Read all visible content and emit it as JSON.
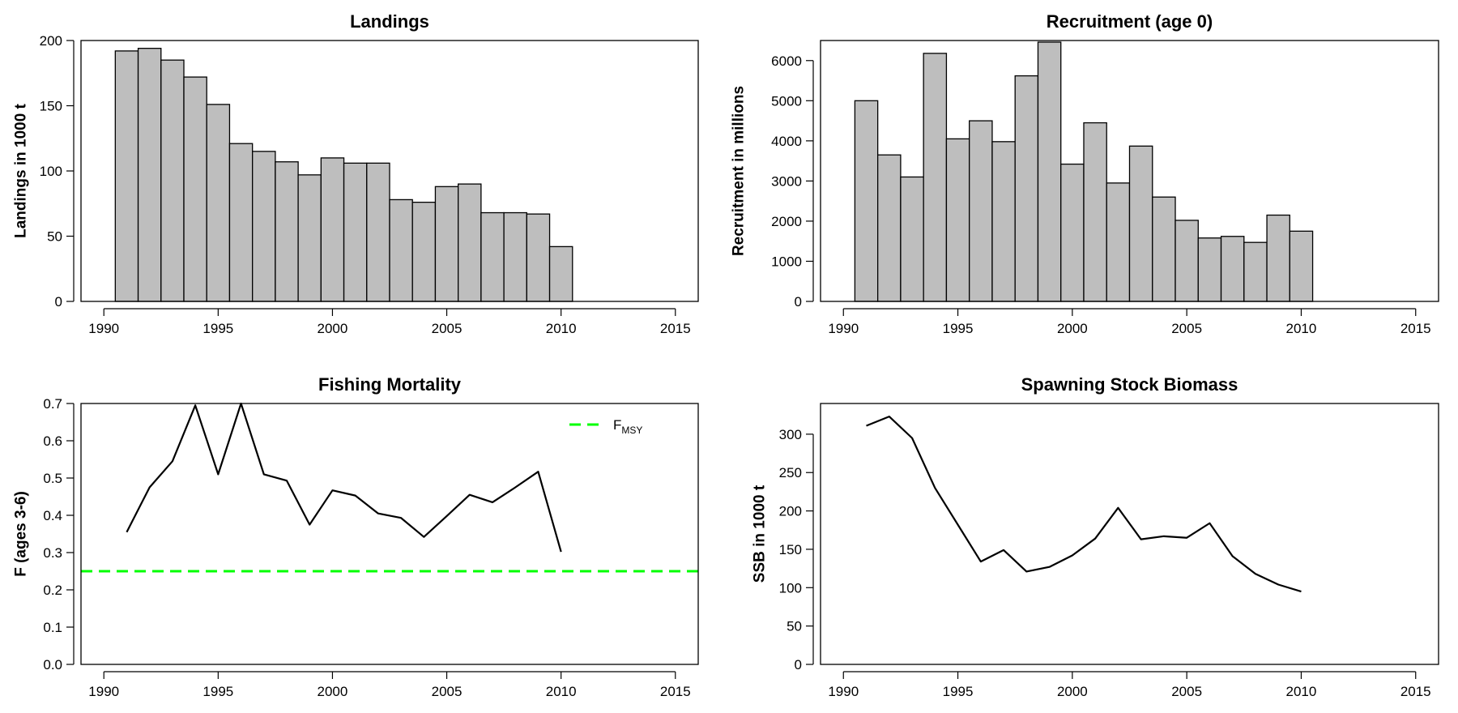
{
  "page": {
    "background": "#ffffff",
    "bar_fill": "#bebebe",
    "line_color": "#000000",
    "ref_line_color": "#00ff00"
  },
  "chart_data": [
    {
      "type": "bar",
      "title": "Landings",
      "xlabel": "",
      "ylabel": "Landings in 1000 t",
      "xlim": [
        1989,
        2016
      ],
      "ylim": [
        0,
        200
      ],
      "xticks": [
        1990,
        1995,
        2000,
        2005,
        2010,
        2015
      ],
      "yticks": [
        0,
        50,
        100,
        150,
        200
      ],
      "grid": false,
      "x": [
        1991,
        1992,
        1993,
        1994,
        1995,
        1996,
        1997,
        1998,
        1999,
        2000,
        2001,
        2002,
        2003,
        2004,
        2005,
        2006,
        2007,
        2008,
        2009,
        2010
      ],
      "values": [
        192,
        194,
        185,
        172,
        151,
        121,
        115,
        107,
        97,
        110,
        106,
        106,
        78,
        76,
        88,
        90,
        68,
        68,
        67,
        42
      ]
    },
    {
      "type": "bar",
      "title": "Recruitment (age 0)",
      "xlabel": "",
      "ylabel": "Recruitment in millions",
      "xlim": [
        1989,
        2016
      ],
      "ylim": [
        0,
        6500
      ],
      "xticks": [
        1990,
        1995,
        2000,
        2005,
        2010,
        2015
      ],
      "yticks": [
        0,
        1000,
        2000,
        3000,
        4000,
        5000,
        6000
      ],
      "grid": false,
      "x": [
        1991,
        1992,
        1993,
        1994,
        1995,
        1996,
        1997,
        1998,
        1999,
        2000,
        2001,
        2002,
        2003,
        2004,
        2005,
        2006,
        2007,
        2008,
        2009,
        2010
      ],
      "values": [
        5000,
        3650,
        3100,
        6180,
        4050,
        4500,
        3980,
        5620,
        6460,
        3420,
        4450,
        2950,
        3870,
        2600,
        2020,
        1580,
        1620,
        1470,
        2150,
        1750
      ]
    },
    {
      "type": "line",
      "title": "Fishing Mortality",
      "xlabel": "",
      "ylabel": "F (ages 3-6)",
      "xlim": [
        1989,
        2016
      ],
      "ylim": [
        0,
        0.7
      ],
      "xticks": [
        1990,
        1995,
        2000,
        2005,
        2010,
        2015
      ],
      "yticks": [
        0.0,
        0.1,
        0.2,
        0.3,
        0.4,
        0.5,
        0.6,
        0.7
      ],
      "ytick_labels": [
        "0.0",
        "0.1",
        "0.2",
        "0.3",
        "0.4",
        "0.5",
        "0.6",
        "0.7"
      ],
      "grid": false,
      "x": [
        1991,
        1992,
        1993,
        1994,
        1995,
        1996,
        1997,
        1998,
        1999,
        2000,
        2001,
        2002,
        2003,
        2004,
        2005,
        2006,
        2007,
        2008,
        2009,
        2010
      ],
      "y": [
        0.355,
        0.475,
        0.545,
        0.695,
        0.51,
        0.7,
        0.51,
        0.493,
        0.375,
        0.467,
        0.453,
        0.405,
        0.393,
        0.342,
        0.398,
        0.455,
        0.435,
        0.475,
        0.517,
        0.302
      ],
      "reference_line": {
        "name": "F",
        "name_sub": "MSY",
        "y": 0.25,
        "style": "dashed"
      },
      "legend_placement": "top-right"
    },
    {
      "type": "line",
      "title": "Spawning Stock Biomass",
      "xlabel": "",
      "ylabel": "SSB in 1000 t",
      "xlim": [
        1989,
        2016
      ],
      "ylim": [
        0,
        340
      ],
      "xticks": [
        1990,
        1995,
        2000,
        2005,
        2010,
        2015
      ],
      "yticks": [
        0,
        50,
        100,
        150,
        200,
        250,
        300
      ],
      "grid": false,
      "x": [
        1991,
        1992,
        1993,
        1994,
        1995,
        1996,
        1997,
        1998,
        1999,
        2000,
        2001,
        2002,
        2003,
        2004,
        2005,
        2006,
        2007,
        2008,
        2009,
        2010
      ],
      "y": [
        311,
        323,
        295,
        230,
        182,
        134,
        149,
        121,
        127,
        142,
        164,
        204,
        163,
        167,
        165,
        184,
        141,
        118,
        104,
        95
      ]
    }
  ]
}
